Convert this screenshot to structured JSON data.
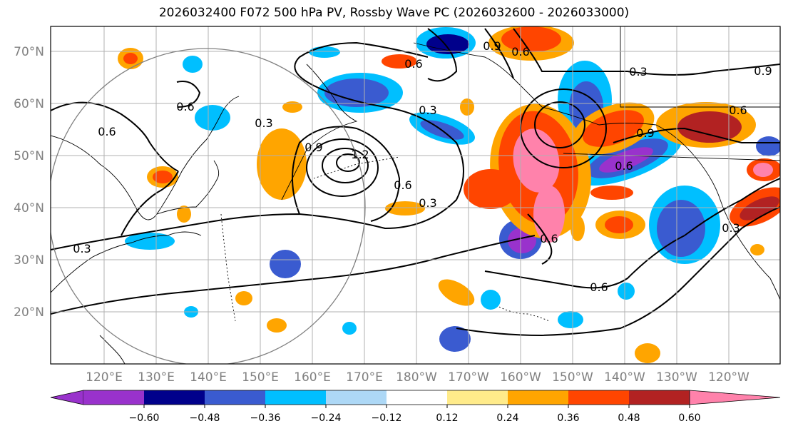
{
  "title": "2026032400 F072 500 hPa PV, Rossby Wave PC (2026032600 - 2026033000)",
  "map": {
    "lat_labels": [
      "70°N",
      "60°N",
      "50°N",
      "40°N",
      "30°N",
      "20°N"
    ],
    "lon_labels": [
      "120°E",
      "130°E",
      "140°E",
      "150°E",
      "160°E",
      "170°E",
      "180°W",
      "170°W",
      "160°W",
      "150°W",
      "140°W",
      "130°W",
      "120°W"
    ],
    "contour_labels": [
      "0.9",
      "0.6",
      "0.6",
      "0.3",
      "0.9",
      "0.6",
      "0.3",
      "0.6",
      "0.6",
      "0.9",
      "0.3",
      "1.2",
      "0.9",
      "0.6",
      "0.3",
      "0.6",
      "0.3",
      "0.6",
      "0.6",
      "0.3"
    ],
    "projection": "PlateCarree"
  },
  "colorbar": {
    "ticks": [
      "−0.60",
      "−0.48",
      "−0.36",
      "−0.24",
      "−0.12",
      "0.12",
      "0.24",
      "0.36",
      "0.48",
      "0.60"
    ],
    "colors": [
      "#9932cc",
      "#00008b",
      "#3a5bd0",
      "#00bfff",
      "#add8f6",
      "#ffffff",
      "#ffeb8a",
      "#ffa500",
      "#ff4500",
      "#b22222",
      "#ff82ab"
    ]
  }
}
